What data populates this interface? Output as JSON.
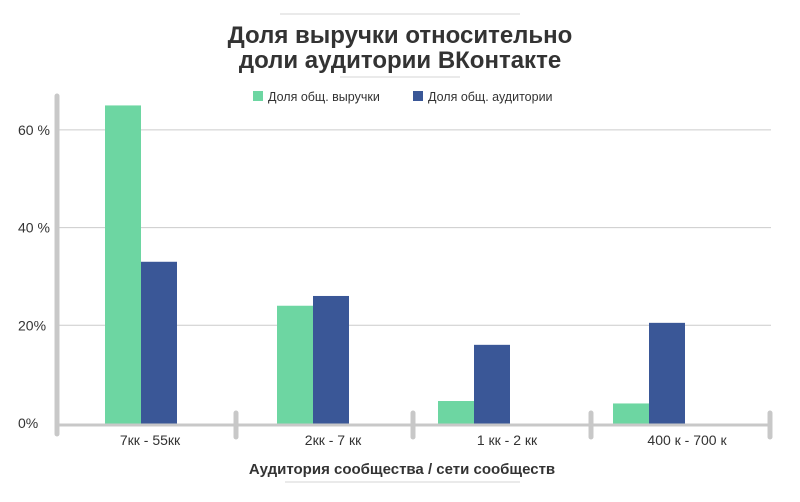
{
  "colors": {
    "revenue": "#6dd6a2",
    "audience": "#3a5797",
    "grid": "#cccccc",
    "axis": "#c8c8c8",
    "text": "#333333"
  },
  "chart_data": {
    "type": "bar",
    "title": [
      "Доля выручки относительно",
      "доли аудитории ВКонтакте"
    ],
    "xlabel": "Аудитория сообщества / сети сообществ",
    "ylabel": "",
    "categories": [
      "7кк - 55кк",
      "2кк - 7 кк",
      "1 кк - 2 кк",
      "400 к - 700 к"
    ],
    "series": [
      {
        "name": "Доля общ. выручки",
        "values": [
          65,
          24,
          4.5,
          4
        ]
      },
      {
        "name": "Доля общ. аудитории",
        "values": [
          33,
          26,
          16,
          20.5
        ]
      }
    ],
    "ylim": [
      0,
      70
    ],
    "yticks": [
      {
        "value": 0,
        "label": "0%"
      },
      {
        "value": 20,
        "label": "20%"
      },
      {
        "value": 40,
        "label": "40 %"
      },
      {
        "value": 60,
        "label": "60 %"
      }
    ],
    "grid": true,
    "legend": "top"
  }
}
